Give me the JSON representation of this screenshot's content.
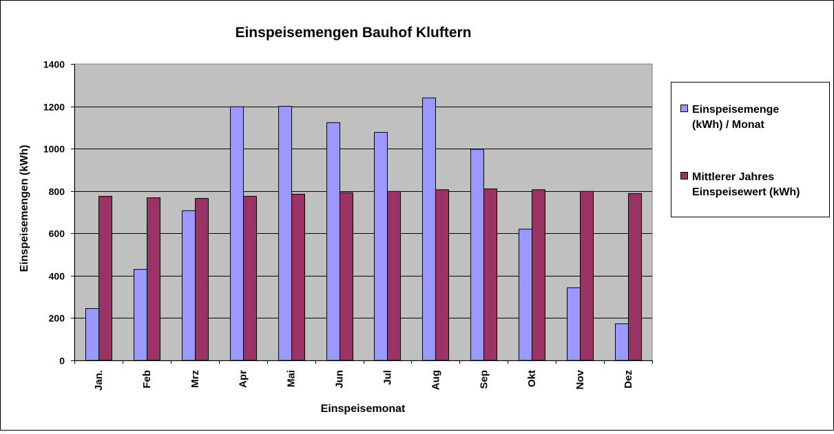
{
  "chart_data": {
    "type": "bar",
    "title": "Einspeisemengen Bauhof Kluftern",
    "xlabel": "Einspeisemonat",
    "ylabel": "Einspeisemengen (kWh)",
    "ylim": [
      0,
      1400
    ],
    "yticks": [
      0,
      200,
      400,
      600,
      800,
      1000,
      1200,
      1400
    ],
    "ytick_labels": [
      "0",
      "200",
      "400",
      "600",
      "800",
      "1000",
      "1200",
      "1400"
    ],
    "grid": true,
    "legend_position": "right",
    "categories": [
      "Jan.",
      "Feb",
      "Mrz",
      "Apr",
      "Mai",
      "Jun",
      "Jul",
      "Aug",
      "Sep",
      "Okt",
      "Nov",
      "Dez"
    ],
    "series": [
      {
        "name_lines": [
          "Einspeisemenge",
          "(kWh) / Monat"
        ],
        "color": "#9999FF",
        "values": [
          245,
          430,
          707,
          1198,
          1200,
          1123,
          1077,
          1240,
          997,
          620,
          343,
          173
        ]
      },
      {
        "name_lines": [
          "Mittlerer Jahres",
          "Einspeisewert (kWh)"
        ],
        "color": "#993366",
        "values": [
          775,
          768,
          765,
          775,
          785,
          792,
          798,
          806,
          810,
          806,
          798,
          788
        ]
      }
    ],
    "plot_background": "#C0C0C0"
  }
}
